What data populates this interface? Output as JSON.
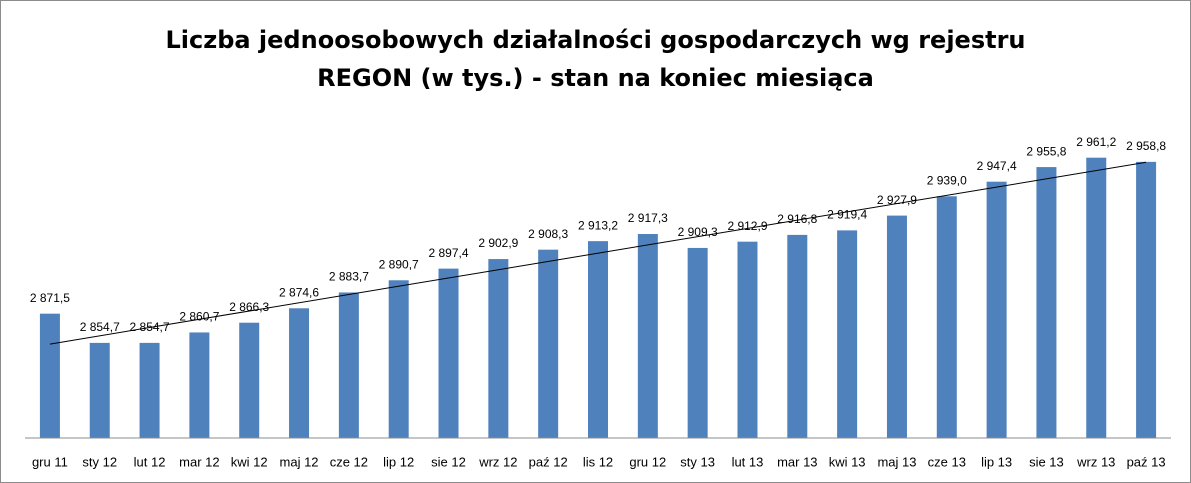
{
  "chart_data": {
    "type": "bar",
    "title": "Liczba jednoosobowych działalności gospodarczych wg rejestru REGON (w tys.) - stan na koniec miesiąca",
    "categories": [
      "gru 11",
      "sty 12",
      "lut 12",
      "mar 12",
      "kwi 12",
      "maj 12",
      "cze 12",
      "lip 12",
      "sie 12",
      "wrz 12",
      "paź 12",
      "lis 12",
      "gru 12",
      "sty 13",
      "lut 13",
      "mar 13",
      "kwi 13",
      "maj 13",
      "cze 13",
      "lip 13",
      "sie 13",
      "wrz 13",
      "paź 13"
    ],
    "values": [
      2871.5,
      2854.7,
      2854.7,
      2860.7,
      2866.3,
      2874.6,
      2883.7,
      2890.7,
      2897.4,
      2902.9,
      2908.3,
      2913.2,
      2917.3,
      2909.3,
      2912.9,
      2916.8,
      2919.4,
      2927.9,
      2939.0,
      2947.4,
      2955.8,
      2961.2,
      2958.8
    ],
    "value_labels": [
      "2 871,5",
      "2 854,7",
      "2 854,7",
      "2 860,7",
      "2 866,3",
      "2 874,6",
      "2 883,7",
      "2 890,7",
      "2 897,4",
      "2 902,9",
      "2 908,3",
      "2 913,2",
      "2 917,3",
      "2 909,3",
      "2 912,9",
      "2 916,8",
      "2 919,4",
      "2 927,9",
      "2 939,0",
      "2 947,4",
      "2 955,8",
      "2 961,2",
      "2 958,8"
    ],
    "color": "#4f81bd",
    "ylim": [
      2800,
      2980
    ],
    "trendline": true
  }
}
